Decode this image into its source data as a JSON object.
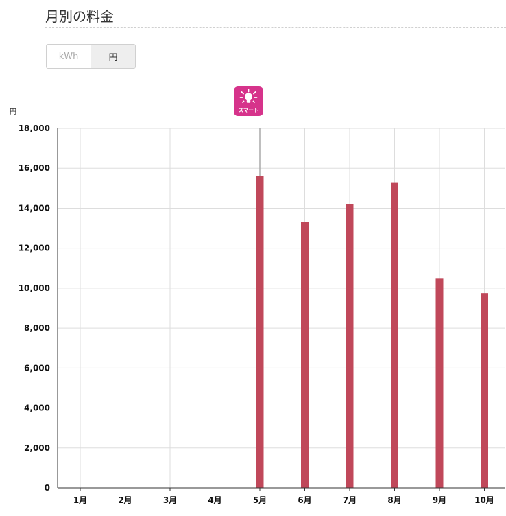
{
  "page": {
    "title": "月別の料金"
  },
  "unit_toggle": {
    "options": [
      {
        "label": "kWh",
        "active": false
      },
      {
        "label": "円",
        "active": true
      }
    ]
  },
  "badge": {
    "label": "スマート",
    "icon": "lightbulb-icon",
    "month": "5月",
    "color": "#d6338b"
  },
  "colors": {
    "bar": "#c0485a",
    "grid": "#dddddd",
    "axis": "#333333"
  },
  "chart_data": {
    "type": "bar",
    "ylabel": "円",
    "ylim": [
      0,
      18000
    ],
    "yticks": [
      0,
      2000,
      4000,
      6000,
      8000,
      10000,
      12000,
      14000,
      16000,
      18000
    ],
    "ytick_labels": [
      "0",
      "2,000",
      "4,000",
      "6,000",
      "8,000",
      "10,000",
      "12,000",
      "14,000",
      "16,000",
      "18,000"
    ],
    "categories": [
      "1月",
      "2月",
      "3月",
      "4月",
      "5月",
      "6月",
      "7月",
      "8月",
      "9月",
      "10月"
    ],
    "values": [
      null,
      null,
      null,
      null,
      15600,
      13300,
      14200,
      15300,
      10500,
      9750
    ],
    "grid": true,
    "legend": "none"
  }
}
